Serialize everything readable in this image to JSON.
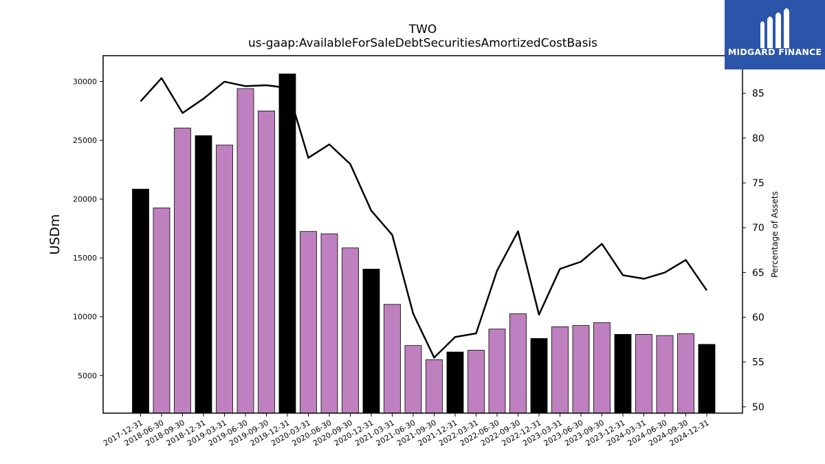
{
  "chart_data": {
    "type": "bar",
    "title": "TWO",
    "subtitle": "us-gaap:AvailableForSaleDebtSecuritiesAmortizedCostBasis",
    "ylabel": "USDm",
    "y2label": "Percentage of Assets",
    "ylim": [
      1800,
      32200
    ],
    "y2lim": [
      49.3,
      89.2
    ],
    "yticks": [
      5000,
      10000,
      15000,
      20000,
      25000,
      30000
    ],
    "y2ticks": [
      50,
      55,
      60,
      65,
      70,
      75,
      80,
      85
    ],
    "categories": [
      "2017-12-31",
      "2018-06-30",
      "2018-09-30",
      "2018-12-31",
      "2019-03-31",
      "2019-06-30",
      "2019-09-30",
      "2019-12-31",
      "2020-03-31",
      "2020-06-30",
      "2020-09-30",
      "2020-12-31",
      "2021-03-31",
      "2021-06-30",
      "2021-09-30",
      "2021-12-31",
      "2022-03-31",
      "2022-06-30",
      "2022-09-30",
      "2022-12-31",
      "2023-03-31",
      "2023-06-30",
      "2023-09-30",
      "2023-12-31",
      "2024-03-31",
      "2024-06-30",
      "2024-09-30",
      "2024-12-31"
    ],
    "series": [
      {
        "values": [
          20850,
          19250,
          26050,
          25400,
          24600,
          29400,
          27500,
          30650,
          17250,
          17050,
          15850,
          14050,
          11050,
          7550,
          6350,
          7000,
          7150,
          8950,
          10250,
          8150,
          9150,
          9250,
          9500,
          8500,
          8500,
          8400,
          8550,
          7650
        ]
      },
      {
        "values": [
          84.1,
          86.7,
          82.8,
          84.4,
          86.3,
          85.8,
          85.9,
          85.6,
          77.8,
          79.3,
          77.1,
          71.9,
          69.2,
          60.4,
          55.5,
          57.8,
          58.2,
          65.2,
          69.6,
          60.3,
          65.4,
          66.2,
          68.2,
          64.7,
          64.3,
          65.0,
          66.4,
          63.0
        ]
      }
    ],
    "bar_colors": {
      "quarter": "#bf80bf",
      "year_end": "#000000"
    },
    "line_color": "#000000",
    "grid": false
  },
  "logo": {
    "text": "MIDGARD FINANCE",
    "background": "#2b55a8"
  }
}
